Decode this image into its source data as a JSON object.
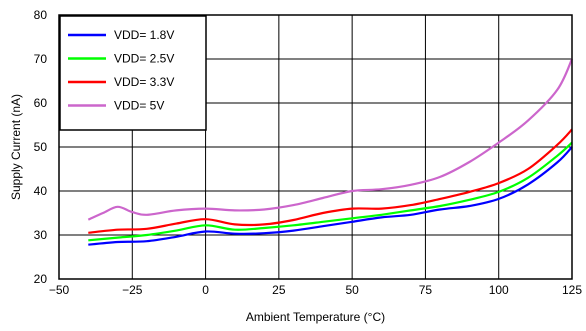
{
  "chart_data": {
    "type": "line",
    "xlabel": "Ambient Temperature (°C)",
    "ylabel": "Supply Current (nA)",
    "xlim": [
      -50,
      125
    ],
    "ylim": [
      20,
      80
    ],
    "xticks": [
      -50,
      -25,
      0,
      25,
      50,
      75,
      100,
      125
    ],
    "yticks": [
      20,
      30,
      40,
      50,
      60,
      70,
      80
    ],
    "xtick_labels": [
      "−50",
      "−25",
      "0",
      "25",
      "50",
      "75",
      "100",
      "125"
    ],
    "ytick_labels": [
      "20",
      "30",
      "40",
      "50",
      "60",
      "70",
      "80"
    ],
    "grid": true,
    "legend_position": "top-left",
    "series": [
      {
        "name": "VDD= 1.8V",
        "color": "#0000ff",
        "x": [
          -40,
          -30,
          -20,
          -10,
          0,
          10,
          20,
          30,
          40,
          50,
          60,
          70,
          80,
          90,
          100,
          110,
          120,
          125
        ],
        "y": [
          27.8,
          28.4,
          28.6,
          29.6,
          30.8,
          30.3,
          30.4,
          31.0,
          32.0,
          33.0,
          34.0,
          34.6,
          35.8,
          36.6,
          38.2,
          41.5,
          46.5,
          50.0
        ]
      },
      {
        "name": "VDD= 2.5V",
        "color": "#00ff00",
        "x": [
          -40,
          -30,
          -20,
          -10,
          0,
          10,
          20,
          30,
          40,
          50,
          60,
          70,
          80,
          90,
          100,
          110,
          120,
          125
        ],
        "y": [
          28.8,
          29.4,
          30.0,
          31.0,
          32.2,
          31.2,
          31.6,
          32.2,
          33.0,
          33.8,
          34.6,
          35.6,
          36.6,
          38.0,
          39.8,
          43.0,
          48.0,
          51.0
        ]
      },
      {
        "name": "VDD= 3.3V",
        "color": "#ff0000",
        "x": [
          -40,
          -30,
          -20,
          -10,
          0,
          10,
          20,
          30,
          40,
          50,
          60,
          70,
          80,
          90,
          100,
          110,
          120,
          125
        ],
        "y": [
          30.5,
          31.2,
          31.4,
          32.6,
          33.6,
          32.4,
          32.4,
          33.4,
          35.0,
          36.0,
          36.0,
          36.8,
          38.2,
          39.8,
          41.8,
          45.0,
          50.5,
          54.0
        ]
      },
      {
        "name": "VDD= 5V",
        "color": "#cc66cc",
        "x": [
          -40,
          -35,
          -30,
          -25,
          -20,
          -10,
          0,
          10,
          20,
          30,
          40,
          50,
          60,
          70,
          80,
          90,
          100,
          110,
          120,
          125
        ],
        "y": [
          33.5,
          35.0,
          36.4,
          35.2,
          34.6,
          35.6,
          36.0,
          35.6,
          35.8,
          36.8,
          38.4,
          40.0,
          40.4,
          41.4,
          43.2,
          46.6,
          51.0,
          56.0,
          63.0,
          70.0
        ]
      }
    ]
  }
}
